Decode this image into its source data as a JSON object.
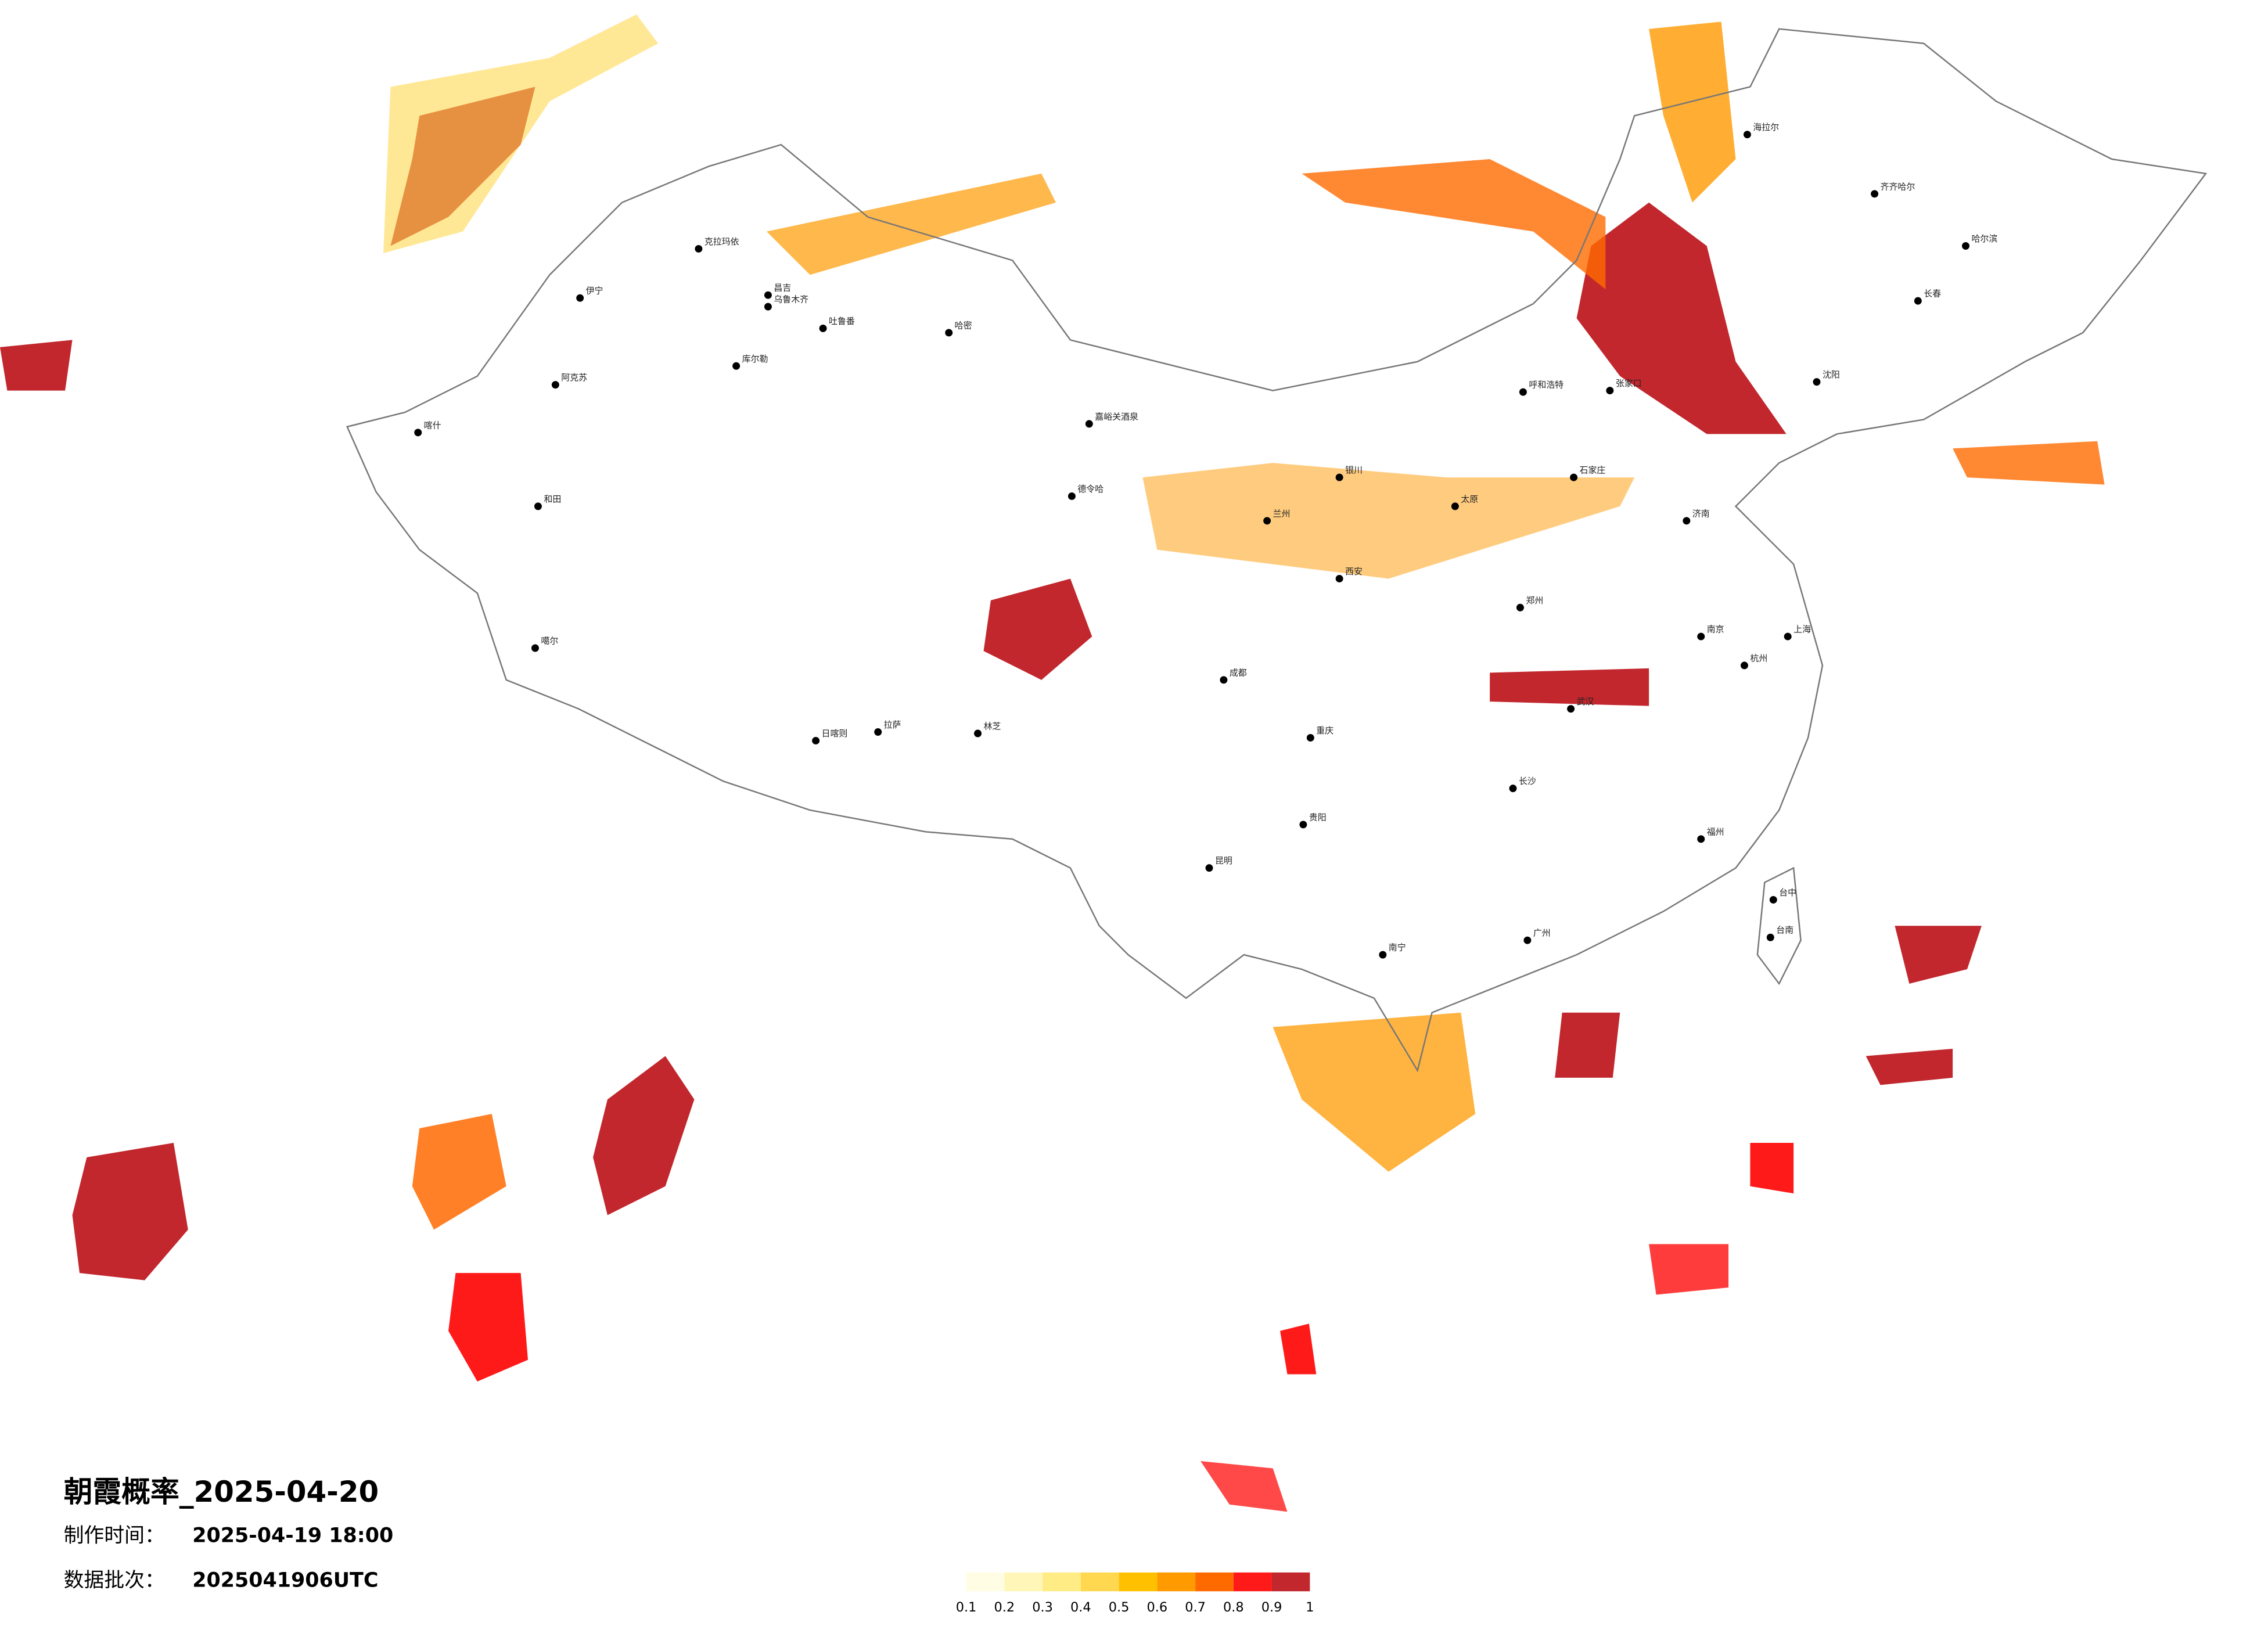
{
  "title": "朝霞概率_2025-04-20",
  "info": [
    {
      "label": "制作时间：",
      "value": "2025-04-19 18:00"
    },
    {
      "label": "数据批次：",
      "value": "2025041906UTC"
    }
  ],
  "legend": {
    "ticks": [
      0.1,
      0.2,
      0.3,
      0.4,
      0.5,
      0.6,
      0.7,
      0.8,
      0.9,
      1
    ],
    "colors": [
      "#fffde3",
      "#fff6b8",
      "#ffec85",
      "#ffd84f",
      "#ffc000",
      "#ff9a00",
      "#ff6a00",
      "#ff1a1a",
      "#c1272d"
    ]
  },
  "cities": [
    "克拉玛依",
    "伊宁",
    "昌吉",
    "乌鲁木齐",
    "吐鲁番",
    "哈密",
    "库尔勒",
    "阿克苏",
    "喀什",
    "和田",
    "德令哈",
    "嘉峪关酒泉",
    "拉萨",
    "日喀则",
    "林芝",
    "噶尔",
    "海拉尔",
    "齐齐哈尔",
    "哈尔滨",
    "长春",
    "沈阳",
    "呼和浩特",
    "张家口",
    "石家庄",
    "郑州",
    "武汉",
    "长沙",
    "重庆",
    "成都",
    "昆明",
    "贵阳",
    "南宁",
    "广州",
    "福州",
    "杭州",
    "上海",
    "南京",
    "济南",
    "西安",
    "兰州",
    "银川",
    "太原",
    "台中",
    "台南"
  ]
}
